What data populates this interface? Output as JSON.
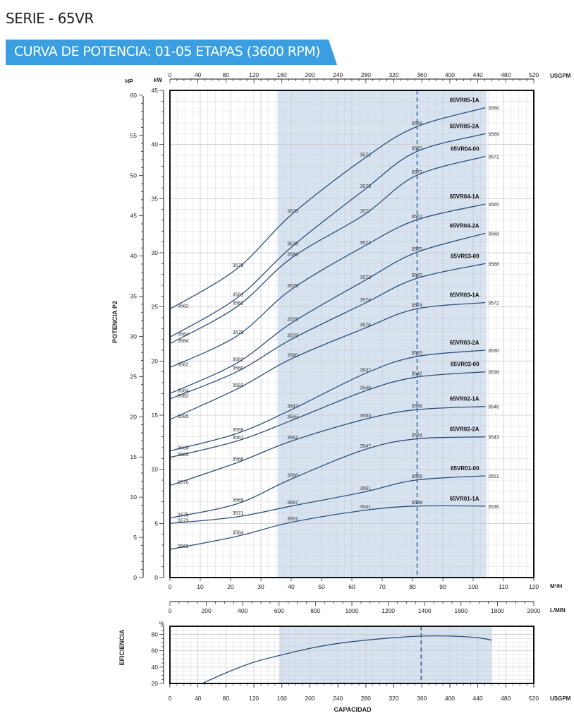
{
  "header": {
    "series_title": "SERIE - 65VR",
    "banner_title": "CURVA DE POTENCIA: 01-05 ETAPAS (3600 RPM)"
  },
  "colors": {
    "banner": "#3a9ee0",
    "shaded_region": "#d7e3f1",
    "curve": "#2c4f7a",
    "grid": "#c9c9c9"
  },
  "chart_data": [
    {
      "type": "line",
      "ylabel": "POTENCIA P2",
      "left_axes": [
        {
          "unit": "HP",
          "range": [
            0,
            60
          ],
          "ticks": [
            0,
            5,
            10,
            15,
            20,
            25,
            30,
            35,
            40,
            45,
            50,
            55,
            60
          ]
        },
        {
          "unit": "kW",
          "range": [
            0,
            45
          ],
          "ticks": [
            0,
            5,
            10,
            15,
            20,
            25,
            30,
            35,
            40,
            45
          ]
        }
      ],
      "x_axes": [
        {
          "unit": "M³/H",
          "position": "bottom",
          "range": [
            0,
            120
          ],
          "ticks": [
            0,
            10,
            20,
            30,
            40,
            50,
            60,
            70,
            80,
            90,
            100,
            110,
            120
          ]
        },
        {
          "unit": "L/MIN",
          "position": "bottom",
          "range": [
            0,
            2000
          ],
          "ticks": [
            0,
            200,
            400,
            600,
            800,
            1000,
            1200,
            1400,
            1600,
            1800,
            2000
          ]
        },
        {
          "unit": "USGPM",
          "position": "top",
          "range": [
            0,
            520
          ],
          "ticks": [
            0,
            40,
            80,
            120,
            160,
            200,
            240,
            280,
            320,
            360,
            400,
            440,
            480,
            520
          ]
        }
      ],
      "shaded_range_m3h": [
        35.5,
        104.5
      ],
      "dashed_line_m3h": 81.5,
      "grid": true,
      "series": [
        {
          "name": "65VR05-1A",
          "x": [
            0,
            22,
            40,
            64,
            81,
            104
          ],
          "y": [
            24.8,
            28.5,
            33.5,
            38.7,
            41.6,
            43.4
          ],
          "labels": [
            "3582",
            "3579",
            "3576",
            "3571",
            "3568",
            "3566"
          ]
        },
        {
          "name": "65VR05-2A",
          "x": [
            0,
            22,
            40,
            64,
            81,
            104
          ],
          "y": [
            22.2,
            25.8,
            30.5,
            35.8,
            39.3,
            41.0
          ],
          "labels": [
            "3584",
            "3581",
            "3578",
            "3573",
            "3570",
            "3569"
          ]
        },
        {
          "name": "65VR04-00",
          "x": [
            0,
            22,
            40,
            64,
            81,
            104
          ],
          "y": [
            21.6,
            25.0,
            29.5,
            33.5,
            37.1,
            38.9
          ],
          "labels": [
            "3584",
            "3582",
            "3580",
            "3577",
            "3572",
            "3571"
          ]
        },
        {
          "name": "65VR04-1A",
          "x": [
            0,
            22,
            40,
            64,
            81,
            104
          ],
          "y": [
            19.4,
            22.3,
            26.6,
            30.6,
            33.0,
            34.5
          ],
          "labels": [
            "3582",
            "3579",
            "3575",
            "3571",
            "3567",
            "3565"
          ]
        },
        {
          "name": "65VR04-2A",
          "x": [
            0,
            22,
            40,
            64,
            81,
            104
          ],
          "y": [
            17.0,
            19.8,
            23.5,
            27.4,
            30.0,
            31.8
          ],
          "labels": [
            "3584",
            "3582",
            "3576",
            "3573",
            "3570",
            "3569"
          ]
        },
        {
          "name": "65VR03-00",
          "x": [
            0,
            22,
            40,
            64,
            81,
            104
          ],
          "y": [
            16.5,
            19.0,
            22.0,
            25.3,
            27.6,
            29.0
          ],
          "labels": [
            "3582",
            "3580",
            "3578",
            "3574",
            "3570",
            "3568"
          ]
        },
        {
          "name": "65VR03-1A",
          "x": [
            0,
            22,
            40,
            64,
            81,
            104
          ],
          "y": [
            14.6,
            17.4,
            20.2,
            23.0,
            24.8,
            25.4
          ],
          "labels": [
            "3585",
            "3583",
            "3580",
            "3576",
            "3574",
            "3572"
          ]
        },
        {
          "name": "65VR03-2A",
          "x": [
            0,
            22,
            40,
            64,
            81,
            104
          ],
          "y": [
            11.7,
            13.3,
            15.5,
            18.8,
            20.4,
            21.0
          ],
          "labels": [
            "3563",
            "3558",
            "3547",
            "3537",
            "3533",
            "3530"
          ]
        },
        {
          "name": "65VR02-00",
          "x": [
            0,
            22,
            40,
            64,
            81,
            104
          ],
          "y": [
            11.1,
            12.6,
            14.5,
            17.2,
            18.5,
            19.0
          ],
          "labels": [
            "3565",
            "3561",
            "3555",
            "3548",
            "3542",
            "3538"
          ]
        },
        {
          "name": "65VR02-1A",
          "x": [
            0,
            22,
            40,
            64,
            81,
            104
          ],
          "y": [
            8.5,
            10.6,
            12.6,
            14.6,
            15.5,
            15.8
          ],
          "labels": [
            "3570",
            "3568",
            "3561",
            "3553",
            "3546",
            "3546"
          ]
        },
        {
          "name": "65VR02-2A",
          "x": [
            0,
            22,
            40,
            64,
            81,
            104
          ],
          "y": [
            5.5,
            6.8,
            9.1,
            11.8,
            12.8,
            13.0
          ],
          "labels": [
            "3575",
            "3569",
            "3566",
            "3547",
            "3544",
            "3543"
          ]
        },
        {
          "name": "65VR01-00",
          "x": [
            0,
            22,
            40,
            64,
            81,
            104
          ],
          "y": [
            5.0,
            5.6,
            6.6,
            7.9,
            9.0,
            9.4
          ],
          "labels": [
            "3573",
            "3571",
            "3567",
            "3561",
            "3555",
            "3551"
          ]
        },
        {
          "name": "65VR01-1A",
          "x": [
            0,
            22,
            40,
            64,
            81,
            104
          ],
          "y": [
            2.6,
            3.8,
            5.1,
            6.2,
            6.6,
            6.6
          ],
          "labels": [
            "3569",
            "3564",
            "3551",
            "3541",
            "3538",
            "3536"
          ]
        }
      ]
    },
    {
      "type": "line",
      "ylabel": "EFICIENCIA",
      "y_unit": "%",
      "ylim": [
        20,
        90
      ],
      "yticks": [
        20,
        40,
        60,
        80
      ],
      "x_axis": {
        "unit": "USGPM",
        "range": [
          0,
          520
        ],
        "ticks": [
          0,
          40,
          80,
          120,
          160,
          200,
          240,
          280,
          320,
          360,
          400,
          440,
          480,
          520
        ]
      },
      "xlabel": "CAPACIDAD",
      "shaded_range_usgpm": [
        156,
        460
      ],
      "dashed_line_usgpm": 359,
      "grid": true,
      "series": [
        {
          "x": [
            46,
            80,
            120,
            160,
            200,
            240,
            280,
            320,
            360,
            400,
            440,
            460
          ],
          "y": [
            20,
            33,
            46,
            55,
            63,
            69,
            73,
            76,
            78,
            78,
            76,
            73
          ]
        }
      ]
    }
  ]
}
